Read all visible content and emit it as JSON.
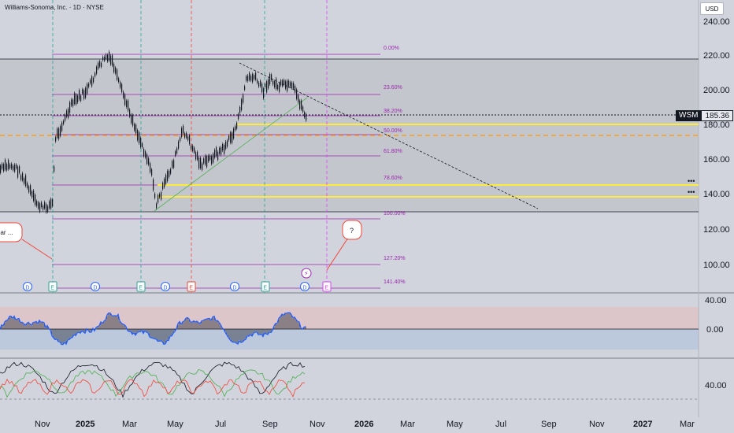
{
  "header": {
    "title": "Williams-Sonoma, Inc. · 1D · NYSE",
    "currency": "USD"
  },
  "ticker": {
    "symbol": "WSM",
    "price": "185.36"
  },
  "price_axis": {
    "labels": [
      "240.00",
      "220.00",
      "200.00",
      "180.00",
      "160.00",
      "140.00",
      "120.00",
      "100.00"
    ]
  },
  "fib_levels": [
    "0.00%",
    "23.60%",
    "38.20%",
    "50.00%",
    "61.80%",
    "78.60%",
    "100.00%",
    "127.20%",
    "141.40%"
  ],
  "callouts": {
    "left": "ear ...",
    "right": "?"
  },
  "event_markers": [
    "D",
    "E",
    "D",
    "E",
    "D",
    "E",
    "D",
    "E",
    "D",
    "E"
  ],
  "oscillator1": {
    "labels": [
      "40.00",
      "0.00"
    ]
  },
  "oscillator2": {
    "labels": [
      "40.00"
    ]
  },
  "time_axis": {
    "labels": [
      "Nov",
      "2025",
      "Mar",
      "May",
      "Jul",
      "Sep",
      "Nov",
      "2026",
      "Mar",
      "May",
      "Jul",
      "Sep",
      "Nov",
      "2027",
      "Mar"
    ]
  },
  "colors": {
    "fib": "#9c27b0",
    "yellow": "#ffeb3b",
    "orange": "#ff9800",
    "osc_blue": "#2962ff",
    "osc_red": "#f44336",
    "osc_green": "#4caf50"
  }
}
